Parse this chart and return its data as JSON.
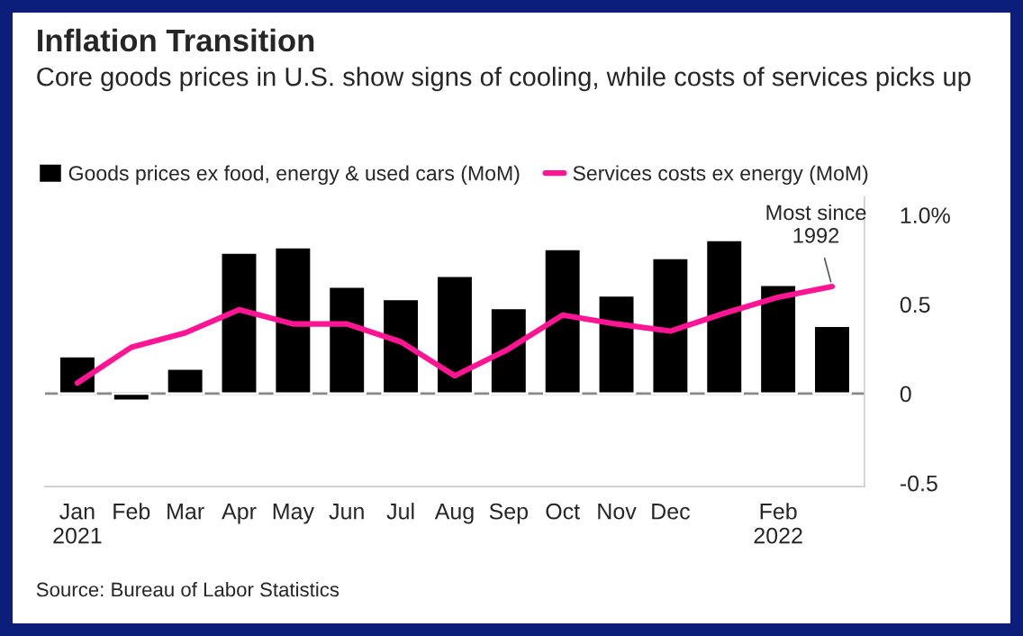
{
  "chart_data": {
    "type": "bar",
    "title": "Inflation Transition",
    "subtitle": "Core goods prices in U.S. show signs of cooling, while costs of services picks up",
    "categories": [
      "Jan\n2021",
      "Feb",
      "Mar",
      "Apr",
      "May",
      "Jun",
      "Jul",
      "Aug",
      "Sep",
      "Oct",
      "Nov",
      "Dec",
      null,
      "Feb\n2022",
      null
    ],
    "series": [
      {
        "name": "Goods prices ex food, energy & used cars (MoM)",
        "color": "#000000",
        "values": [
          0.21,
          -0.04,
          0.14,
          0.79,
          0.82,
          0.6,
          0.53,
          0.66,
          0.48,
          0.81,
          0.55,
          0.76,
          0.86,
          0.61,
          0.38
        ]
      },
      {
        "name": "Services costs ex energy (MoM)",
        "type": "line",
        "color": "#ff1493",
        "values": [
          0.06,
          0.26,
          0.34,
          0.47,
          0.39,
          0.39,
          0.29,
          0.1,
          0.25,
          0.44,
          0.39,
          0.35,
          0.45,
          0.54,
          0.6
        ]
      }
    ],
    "ylim": [
      -0.52,
      1.1
    ],
    "yticks": [
      {
        "value": 1.0,
        "label": "1.0%"
      },
      0.5,
      0,
      -0.5
    ],
    "ref_lines": [
      {
        "axis": "y",
        "value": 0,
        "color": "#888888"
      }
    ],
    "annotations": [
      {
        "text": "Most since\n1992",
        "y": 0.6
      },
      "Source: Bureau of Labor Statistics"
    ],
    "legend": "top left",
    "grid": false
  }
}
